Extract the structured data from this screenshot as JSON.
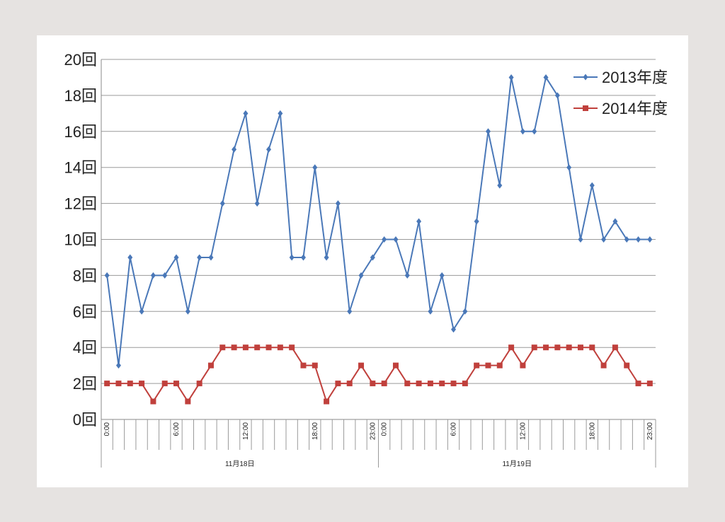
{
  "chart_data": {
    "type": "line",
    "y_unit": "回",
    "y_ticks": [
      0,
      2,
      4,
      6,
      8,
      10,
      12,
      14,
      16,
      18,
      20
    ],
    "ylim": [
      0,
      20
    ],
    "grid": true,
    "legend_position": "top-right",
    "days": [
      {
        "label": "11月18日",
        "tick_labels": [
          "0:00",
          "6:00",
          "12:00",
          "18:00",
          "23:00"
        ]
      },
      {
        "label": "11月19日",
        "tick_labels": [
          "0:00",
          "6:00",
          "12:00",
          "18:00",
          "23:00"
        ]
      }
    ],
    "x_hours_per_day": 24,
    "series": [
      {
        "name": "2013年度",
        "color": "#4a78b8",
        "marker": "diamond",
        "values": [
          8,
          3,
          9,
          6,
          8,
          8,
          9,
          6,
          9,
          9,
          12,
          15,
          17,
          12,
          15,
          17,
          9,
          9,
          14,
          9,
          12,
          6,
          8,
          9,
          10,
          10,
          8,
          11,
          6,
          8,
          5,
          6,
          11,
          16,
          13,
          19,
          16,
          16,
          19,
          18,
          14,
          10,
          13,
          10,
          11,
          10,
          10,
          10
        ]
      },
      {
        "name": "2014年度",
        "color": "#c0403c",
        "marker": "square",
        "values": [
          2,
          2,
          2,
          2,
          1,
          2,
          2,
          1,
          2,
          3,
          4,
          4,
          4,
          4,
          4,
          4,
          4,
          3,
          3,
          1,
          2,
          2,
          3,
          2,
          2,
          3,
          2,
          2,
          2,
          2,
          2,
          2,
          3,
          3,
          3,
          4,
          3,
          4,
          4,
          4,
          4,
          4,
          4,
          3,
          4,
          3,
          2,
          2
        ]
      }
    ]
  }
}
